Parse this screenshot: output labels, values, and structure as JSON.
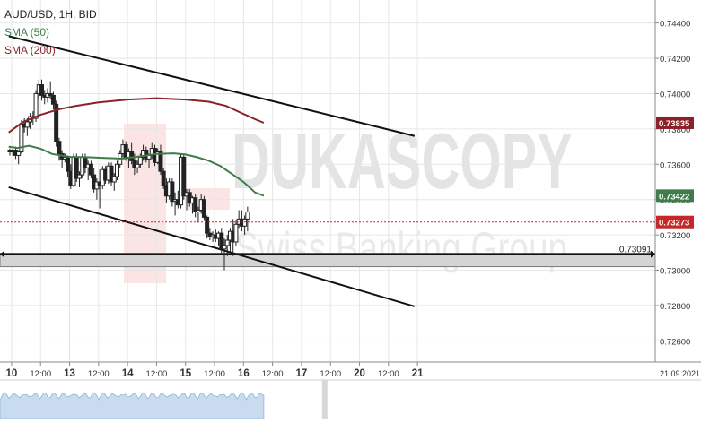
{
  "chart_data": {
    "type": "candlestick",
    "title": "AUD/USD, 1H, BID",
    "watermark": "DUKASCOPY",
    "watermark_sub": "Swiss Banking Group",
    "x_ticks": [
      "10",
      "12:00",
      "13",
      "12:00",
      "14",
      "12:00",
      "15",
      "12:00",
      "16",
      "12:00",
      "17",
      "12:00",
      "20",
      "12:00",
      "21",
      "21.09.2021"
    ],
    "y_ticks": [
      "0.74400",
      "0.74200",
      "0.74000",
      "0.73800",
      "0.73600",
      "0.73400",
      "0.73200",
      "0.73000",
      "0.72800",
      "0.72600"
    ],
    "y_range": [
      0.7248,
      0.7453
    ],
    "series": [
      {
        "name": "SMA (50)",
        "color": "#3d7d4a",
        "current_value": "0.73422",
        "values": [
          [
            9.95,
            0.737
          ],
          [
            10.1,
            0.73692
          ],
          [
            10.3,
            0.73705
          ],
          [
            10.5,
            0.73688
          ],
          [
            10.7,
            0.73658
          ],
          [
            11.0,
            0.73642
          ],
          [
            11.3,
            0.7364
          ],
          [
            11.6,
            0.73636
          ],
          [
            11.9,
            0.73632
          ],
          [
            12.2,
            0.73644
          ],
          [
            12.5,
            0.73658
          ],
          [
            12.8,
            0.73662
          ],
          [
            13.0,
            0.73655
          ],
          [
            13.2,
            0.7364
          ],
          [
            13.4,
            0.7362
          ],
          [
            13.6,
            0.7359
          ],
          [
            13.8,
            0.73545
          ],
          [
            14.0,
            0.735
          ],
          [
            14.1,
            0.7347
          ],
          [
            14.2,
            0.7344
          ],
          [
            14.35,
            0.73422
          ]
        ]
      },
      {
        "name": "SMA (200)",
        "color": "#8b2228",
        "current_value": "0.73835",
        "values": [
          [
            9.95,
            0.7378
          ],
          [
            10.2,
            0.7384
          ],
          [
            10.5,
            0.7388
          ],
          [
            10.8,
            0.7391
          ],
          [
            11.1,
            0.7393
          ],
          [
            11.5,
            0.7395
          ],
          [
            12.0,
            0.73966
          ],
          [
            12.5,
            0.73974
          ],
          [
            13.0,
            0.73966
          ],
          [
            13.4,
            0.73954
          ],
          [
            13.7,
            0.7393
          ],
          [
            14.0,
            0.73885
          ],
          [
            14.2,
            0.73855
          ],
          [
            14.35,
            0.73835
          ]
        ]
      }
    ],
    "price_line": {
      "value": "0.73273",
      "color": "#c62828"
    },
    "support_level": {
      "value": "0.73091"
    },
    "trendlines": [
      {
        "x1": 9.95,
        "y1": 0.74325,
        "x2": 16.95,
        "y2": 0.7376
      },
      {
        "x1": 9.95,
        "y1": 0.7347,
        "x2": 16.95,
        "y2": 0.72795
      }
    ],
    "candles": [
      [
        9.97,
        0.7368,
        0.7369,
        0.7365,
        0.7367
      ],
      [
        10.02,
        0.7367,
        0.7369,
        0.7365,
        0.7368
      ],
      [
        10.07,
        0.7368,
        0.737,
        0.7363,
        0.7365
      ],
      [
        10.12,
        0.7365,
        0.7368,
        0.736,
        0.7367
      ],
      [
        10.17,
        0.7367,
        0.7385,
        0.7366,
        0.7383
      ],
      [
        10.22,
        0.7383,
        0.7386,
        0.7378,
        0.7381
      ],
      [
        10.27,
        0.7381,
        0.7386,
        0.7376,
        0.7384
      ],
      [
        10.32,
        0.7384,
        0.7389,
        0.738,
        0.7387
      ],
      [
        10.37,
        0.7387,
        0.739,
        0.7382,
        0.7386
      ],
      [
        10.42,
        0.7386,
        0.7402,
        0.7384,
        0.74
      ],
      [
        10.47,
        0.74,
        0.7408,
        0.7397,
        0.7405
      ],
      [
        10.52,
        0.7405,
        0.7408,
        0.7396,
        0.7399
      ],
      [
        10.57,
        0.7399,
        0.7402,
        0.7394,
        0.7398
      ],
      [
        10.62,
        0.7398,
        0.7403,
        0.7395,
        0.74
      ],
      [
        10.67,
        0.74,
        0.7407,
        0.7397,
        0.7399
      ],
      [
        10.72,
        0.7399,
        0.7401,
        0.7391,
        0.7394
      ],
      [
        10.77,
        0.7394,
        0.7396,
        0.737,
        0.7373
      ],
      [
        10.82,
        0.7373,
        0.7375,
        0.7362,
        0.7366
      ],
      [
        10.87,
        0.7366,
        0.7368,
        0.7358,
        0.7363
      ],
      [
        10.92,
        0.7363,
        0.7366,
        0.7361,
        0.7364
      ],
      [
        10.97,
        0.7364,
        0.7365,
        0.7353,
        0.7356
      ],
      [
        11.02,
        0.7356,
        0.736,
        0.7346,
        0.7348
      ],
      [
        11.07,
        0.7348,
        0.7366,
        0.7347,
        0.7364
      ],
      [
        11.12,
        0.7364,
        0.7366,
        0.735,
        0.7352
      ],
      [
        11.17,
        0.7352,
        0.7356,
        0.7347,
        0.7354
      ],
      [
        11.22,
        0.7354,
        0.7366,
        0.7352,
        0.7364
      ],
      [
        11.27,
        0.7364,
        0.7366,
        0.7355,
        0.7358
      ],
      [
        11.32,
        0.7358,
        0.7362,
        0.7351,
        0.736
      ],
      [
        11.37,
        0.736,
        0.7362,
        0.7352,
        0.7354
      ],
      [
        11.42,
        0.7354,
        0.7358,
        0.7344,
        0.7346
      ],
      [
        11.47,
        0.7346,
        0.7352,
        0.734,
        0.735
      ],
      [
        11.52,
        0.735,
        0.7357,
        0.7335,
        0.7348
      ],
      [
        11.57,
        0.7348,
        0.7359,
        0.7346,
        0.7357
      ],
      [
        11.62,
        0.7357,
        0.7359,
        0.7349,
        0.7351
      ],
      [
        11.67,
        0.7351,
        0.7361,
        0.7349,
        0.7359
      ],
      [
        11.72,
        0.7359,
        0.7361,
        0.7348,
        0.735
      ],
      [
        11.77,
        0.735,
        0.7355,
        0.7345,
        0.7353
      ],
      [
        11.82,
        0.7353,
        0.7362,
        0.7351,
        0.736
      ],
      [
        11.87,
        0.736,
        0.7368,
        0.7358,
        0.7366
      ],
      [
        11.92,
        0.7366,
        0.7374,
        0.7364,
        0.7371
      ],
      [
        11.97,
        0.7371,
        0.7373,
        0.7362,
        0.7364
      ],
      [
        12.02,
        0.7364,
        0.7369,
        0.7358,
        0.7367
      ],
      [
        12.07,
        0.7367,
        0.7372,
        0.736,
        0.7362
      ],
      [
        12.12,
        0.7362,
        0.7366,
        0.7354,
        0.7358
      ],
      [
        12.17,
        0.7358,
        0.7362,
        0.7355,
        0.736
      ],
      [
        12.22,
        0.736,
        0.7366,
        0.7358,
        0.7364
      ],
      [
        12.27,
        0.7364,
        0.7371,
        0.7362,
        0.7368
      ],
      [
        12.32,
        0.7368,
        0.737,
        0.7361,
        0.7363
      ],
      [
        12.37,
        0.7363,
        0.7366,
        0.7358,
        0.7365
      ],
      [
        12.42,
        0.7365,
        0.7372,
        0.7363,
        0.7369
      ],
      [
        12.47,
        0.7369,
        0.7371,
        0.7359,
        0.7361
      ],
      [
        12.52,
        0.7361,
        0.7369,
        0.736,
        0.7367
      ],
      [
        12.57,
        0.7367,
        0.7371,
        0.7354,
        0.7356
      ],
      [
        12.62,
        0.7356,
        0.7358,
        0.7346,
        0.7348
      ],
      [
        12.67,
        0.7348,
        0.7352,
        0.7338,
        0.7342
      ],
      [
        12.72,
        0.7342,
        0.7352,
        0.734,
        0.735
      ],
      [
        12.77,
        0.735,
        0.7352,
        0.7336,
        0.7339
      ],
      [
        12.82,
        0.7339,
        0.7344,
        0.7331,
        0.734
      ],
      [
        12.87,
        0.734,
        0.7345,
        0.7335,
        0.7337
      ],
      [
        12.92,
        0.7337,
        0.7366,
        0.7335,
        0.7364
      ],
      [
        12.97,
        0.7364,
        0.7366,
        0.734,
        0.7342
      ],
      [
        13.02,
        0.7342,
        0.7346,
        0.7334,
        0.7344
      ],
      [
        13.07,
        0.7344,
        0.7346,
        0.7336,
        0.7338
      ],
      [
        13.12,
        0.7338,
        0.7342,
        0.7332,
        0.7341
      ],
      [
        13.17,
        0.7341,
        0.7343,
        0.733,
        0.7333
      ],
      [
        13.22,
        0.7333,
        0.7336,
        0.7327,
        0.7334
      ],
      [
        13.27,
        0.7334,
        0.7343,
        0.7332,
        0.734
      ],
      [
        13.32,
        0.734,
        0.7342,
        0.7328,
        0.733
      ],
      [
        13.37,
        0.733,
        0.7331,
        0.7318,
        0.7321
      ],
      [
        13.42,
        0.7321,
        0.7324,
        0.7317,
        0.7319
      ],
      [
        13.47,
        0.7319,
        0.7322,
        0.7316,
        0.732
      ],
      [
        13.52,
        0.732,
        0.7323,
        0.7316,
        0.7318
      ],
      [
        13.57,
        0.7318,
        0.7322,
        0.7314,
        0.7321
      ],
      [
        13.62,
        0.7321,
        0.7324,
        0.7309,
        0.7312
      ],
      [
        13.67,
        0.7312,
        0.7318,
        0.73,
        0.7314
      ],
      [
        13.72,
        0.7314,
        0.732,
        0.7308,
        0.7317
      ],
      [
        13.77,
        0.7317,
        0.7324,
        0.731,
        0.7322
      ],
      [
        13.82,
        0.7322,
        0.7329,
        0.7308,
        0.7316
      ],
      [
        13.87,
        0.7316,
        0.7328,
        0.7314,
        0.7326
      ],
      [
        13.92,
        0.7326,
        0.7334,
        0.7324,
        0.7329
      ],
      [
        13.97,
        0.7329,
        0.7334,
        0.7322,
        0.7325
      ],
      [
        14.02,
        0.7325,
        0.7331,
        0.732,
        0.7329
      ],
      [
        14.07,
        0.7329,
        0.7336,
        0.7322,
        0.7333
      ]
    ]
  },
  "volume": {
    "color": "#c9dcef"
  }
}
